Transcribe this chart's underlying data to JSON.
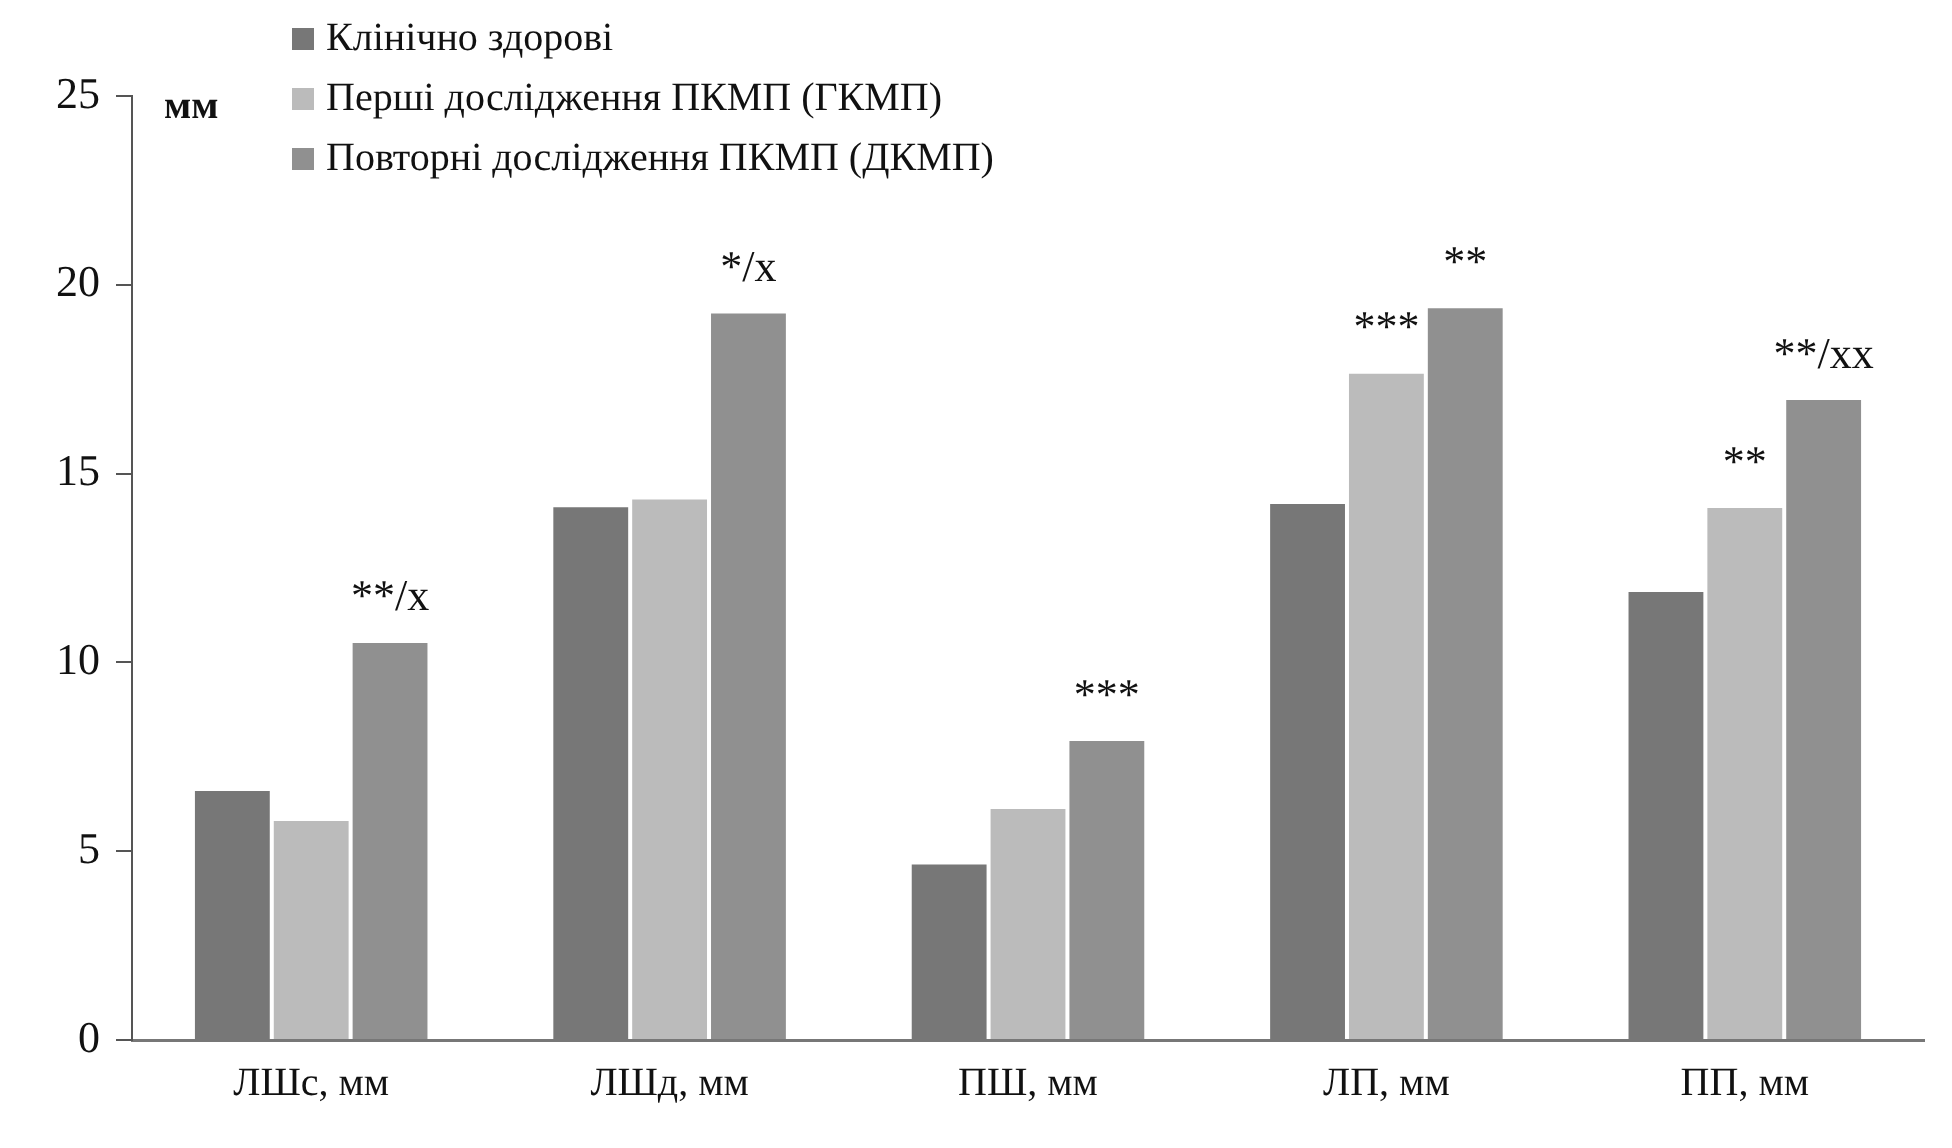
{
  "chart_data": {
    "type": "bar",
    "ylabel": "мм",
    "categories": [
      "ЛШс, мм",
      "ЛШд, мм",
      "ПШ, мм",
      "ЛП, мм",
      "ПП, мм"
    ],
    "series": [
      {
        "name": "Клінічно здорові",
        "color": "#777777",
        "values": [
          6.65,
          14.16,
          4.7,
          14.25,
          11.92
        ]
      },
      {
        "name": "Перші дослідження ПКМП (ГКМП)",
        "color": "#bbbbbb",
        "values": [
          5.85,
          14.37,
          6.17,
          17.7,
          14.14
        ],
        "value_labels": [
          null,
          null,
          null,
          "***",
          "**"
        ]
      },
      {
        "name": "Повторні дослідження ПКМП (ДКМП)",
        "color": "#909090",
        "values": [
          10.57,
          19.29,
          7.97,
          19.43,
          17.0
        ],
        "value_labels": [
          "**/x",
          "*/x",
          "***",
          "**",
          "**/xx"
        ]
      }
    ],
    "ylim": [
      0,
      25
    ],
    "yticks": [
      0,
      5,
      10,
      15,
      20,
      25
    ],
    "grid": false,
    "legend": "top left"
  }
}
